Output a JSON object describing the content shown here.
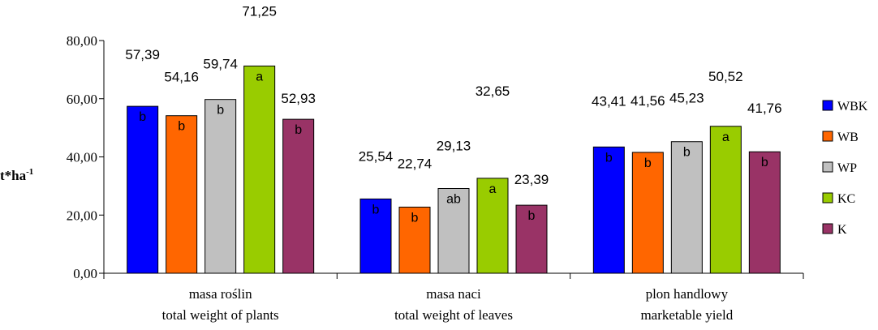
{
  "chart_data": {
    "type": "bar",
    "ylabel": "t*ha",
    "ylabel_superscript": "-1",
    "ylim": [
      0,
      80
    ],
    "yticks": [
      "0,00",
      "20,00",
      "40,00",
      "60,00",
      "80,00"
    ],
    "ytick_values": [
      0,
      20,
      40,
      60,
      80
    ],
    "categories": [
      [
        "masa roślin",
        "total weight of  plants"
      ],
      [
        "masa naci",
        "total weight of  leaves"
      ],
      [
        "plon handlowy",
        "marketable yield"
      ]
    ],
    "series": [
      {
        "name": "WBK",
        "color": "#0000ff",
        "values": [
          57.39,
          25.54,
          43.41
        ],
        "labels": [
          "57,39",
          "25,54",
          "43,41"
        ],
        "letters": [
          "b",
          "b",
          "b"
        ]
      },
      {
        "name": "WB",
        "color": "#ff6600",
        "values": [
          54.16,
          22.74,
          41.56
        ],
        "labels": [
          "54,16",
          "22,74",
          "41,56"
        ],
        "letters": [
          "b",
          "b",
          "b"
        ]
      },
      {
        "name": "WP",
        "color": "#c0c0c0",
        "values": [
          59.74,
          29.13,
          45.23
        ],
        "labels": [
          "59,74",
          "29,13",
          "45,23"
        ],
        "letters": [
          "b",
          "ab",
          "b"
        ]
      },
      {
        "name": "KC",
        "color": "#99cc00",
        "values": [
          71.25,
          32.65,
          50.52
        ],
        "labels": [
          "71,25",
          "32,65",
          "50,52"
        ],
        "letters": [
          "a",
          "a",
          "a"
        ]
      },
      {
        "name": "K",
        "color": "#993366",
        "values": [
          52.93,
          23.39,
          41.76
        ],
        "labels": [
          "52,93",
          "23,39",
          "41,76"
        ],
        "letters": [
          "b",
          "b",
          "b"
        ]
      }
    ],
    "legend": "right",
    "grid": false
  }
}
